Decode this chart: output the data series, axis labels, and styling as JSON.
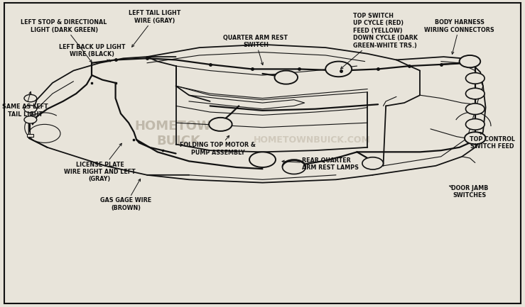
{
  "bg_color": "#e8e4da",
  "border_color": "#111111",
  "text_color": "#111111",
  "wm1_text": "HOMETOWN\nBUICK",
  "wm2_text": "HOMETOWNBUICK.COM",
  "wm1_color": "#b0a898",
  "wm2_color": "#c0b8a8",
  "font": "DejaVu Sans",
  "fontsize": 5.8,
  "annotations": [
    {
      "text": "LEFT STOP & DIRECTIONAL\nLIGHT (DARK GREEN)",
      "xt": 0.122,
      "yt": 0.915,
      "xa": 0.178,
      "ya": 0.79,
      "ha": "center"
    },
    {
      "text": "LEFT TAIL LIGHT\nWIRE (GRAY)",
      "xt": 0.295,
      "yt": 0.945,
      "xa": 0.248,
      "ya": 0.84,
      "ha": "center"
    },
    {
      "text": "LEFT BACK UP LIGHT\nWIRE (BLACK)",
      "xt": 0.175,
      "yt": 0.835,
      "xa": 0.215,
      "ya": 0.795,
      "ha": "center"
    },
    {
      "text": "SAME AS LEFT\nTAIL LIGHT",
      "xt": 0.048,
      "yt": 0.64,
      "xa": 0.06,
      "ya": 0.71,
      "ha": "center"
    },
    {
      "text": "LICENSE PLATE\nWIRE RIGHT AND LEFT\n(GRAY)",
      "xt": 0.19,
      "yt": 0.44,
      "xa": 0.235,
      "ya": 0.54,
      "ha": "center"
    },
    {
      "text": "GAS GAGE WIRE\n(BROWN)",
      "xt": 0.24,
      "yt": 0.335,
      "xa": 0.27,
      "ya": 0.425,
      "ha": "center"
    },
    {
      "text": "QUARTER ARM REST\nSWITCH",
      "xt": 0.487,
      "yt": 0.865,
      "xa": 0.502,
      "ya": 0.78,
      "ha": "center"
    },
    {
      "text": "FOLDING TOP MOTOR &\nPUMP ASSEMBLY",
      "xt": 0.415,
      "yt": 0.515,
      "xa": 0.44,
      "ya": 0.565,
      "ha": "center"
    },
    {
      "text": "TOP SWITCH\nUP CYCLE (RED)\nFEED (YELLOW)\nDOWN CYCLE (DARK\nGREEN-WHITE TRS.)",
      "xt": 0.672,
      "yt": 0.9,
      "xa": 0.645,
      "ya": 0.77,
      "ha": "left"
    },
    {
      "text": "BODY HARNESS\nWIRING CONNECTORS",
      "xt": 0.875,
      "yt": 0.915,
      "xa": 0.86,
      "ya": 0.815,
      "ha": "center"
    },
    {
      "text": "REAR QUARTER\nARM REST LAMPS",
      "xt": 0.575,
      "yt": 0.465,
      "xa": 0.532,
      "ya": 0.475,
      "ha": "left"
    },
    {
      "text": "TOP CONTROL\nSWITCH FEED",
      "xt": 0.938,
      "yt": 0.535,
      "xa": 0.91,
      "ya": 0.575,
      "ha": "center"
    },
    {
      "text": "DOOR JAMB\nSWITCHES",
      "xt": 0.895,
      "yt": 0.375,
      "xa": 0.855,
      "ya": 0.395,
      "ha": "center"
    }
  ]
}
